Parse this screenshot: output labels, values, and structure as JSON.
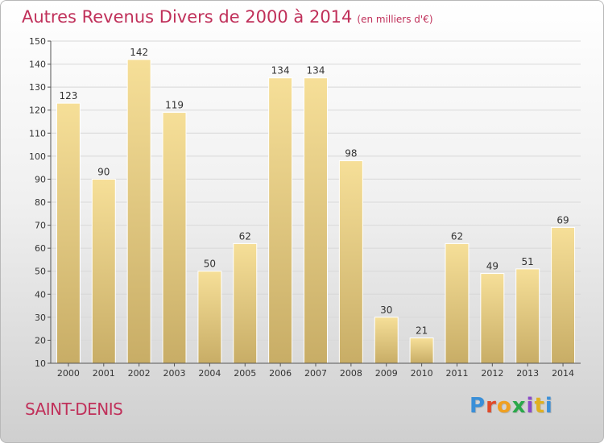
{
  "title": "Autres Revenus Divers de 2000 à 2014",
  "title_unit": "(en milliers d'€)",
  "place": "SAINT-DENIS",
  "logo": {
    "text": "Proxiti",
    "colors": [
      "#3a8fd8",
      "#e04a2a",
      "#f0a020",
      "#2aa84a",
      "#8a4ac8",
      "#e0b020",
      "#3a8fd8"
    ]
  },
  "colors": {
    "bar_top": "#f6df98",
    "bar_bottom": "#c8ad66",
    "title": "#c0305a",
    "grid": "#d8d8d8"
  },
  "chart_data": {
    "type": "bar",
    "categories": [
      "2000",
      "2001",
      "2002",
      "2003",
      "2004",
      "2005",
      "2006",
      "2007",
      "2008",
      "2009",
      "2010",
      "2011",
      "2012",
      "2013",
      "2014"
    ],
    "values": [
      123,
      90,
      142,
      119,
      50,
      62,
      134,
      134,
      98,
      30,
      21,
      62,
      49,
      51,
      69
    ],
    "title": "Autres Revenus Divers de 2000 à 2014",
    "xlabel": "",
    "ylabel": "",
    "ylim": [
      10,
      150
    ],
    "yticks": [
      10,
      20,
      30,
      40,
      50,
      60,
      70,
      80,
      90,
      100,
      110,
      120,
      130,
      140,
      150
    ],
    "grid": true,
    "data_labels": true
  }
}
